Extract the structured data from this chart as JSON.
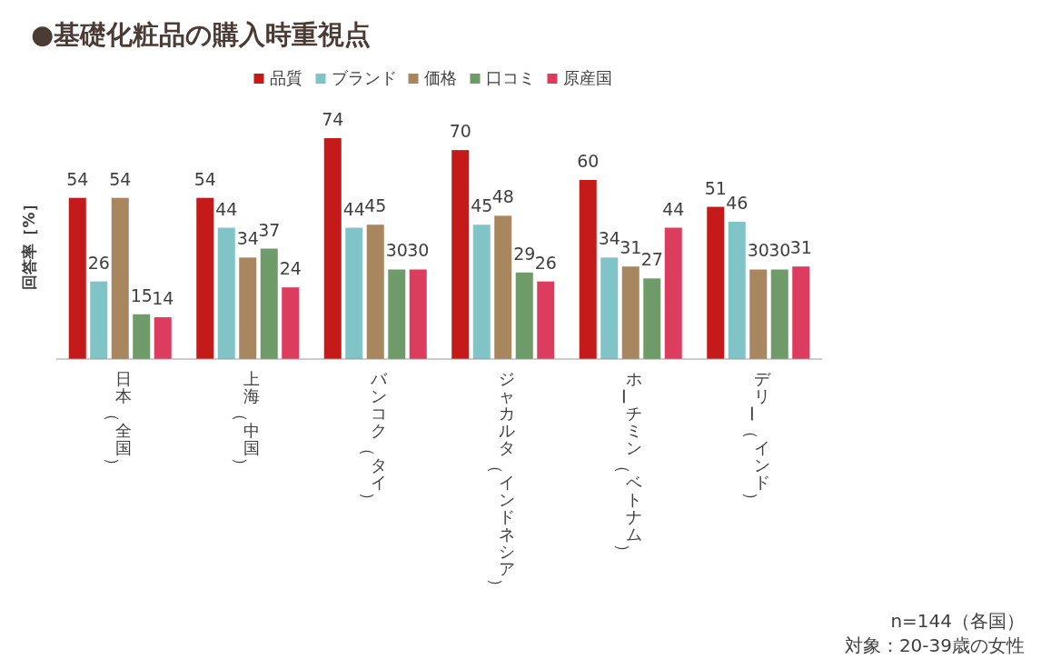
{
  "chart_data": {
    "type": "bar",
    "title": "●基礎化粧品の購入時重視点",
    "ylabel": "回答率［%］",
    "categories": [
      "日本（全国）",
      "上海（中国）",
      "バンコク（タイ）",
      "ジャカルタ（インドネシア）",
      "ホーチミン（ベトナム）",
      "デリー（インド）"
    ],
    "series": [
      {
        "name": "品質",
        "color": "#c41a1a",
        "values": [
          54,
          54,
          74,
          70,
          60,
          51
        ]
      },
      {
        "name": "ブランド",
        "color": "#80c4c8",
        "values": [
          26,
          44,
          44,
          45,
          34,
          46
        ]
      },
      {
        "name": "価格",
        "color": "#a8865f",
        "values": [
          54,
          34,
          45,
          48,
          31,
          30
        ]
      },
      {
        "name": "口コミ",
        "color": "#6f9a69",
        "values": [
          15,
          37,
          30,
          29,
          27,
          30
        ]
      },
      {
        "name": "原産国",
        "color": "#dc3d5f",
        "values": [
          14,
          24,
          30,
          26,
          44,
          31
        ]
      }
    ],
    "data_labels": true,
    "legend": "top",
    "grid": false,
    "annotations": [
      "n=144（各国）",
      "対象：20-39歳の女性"
    ]
  }
}
